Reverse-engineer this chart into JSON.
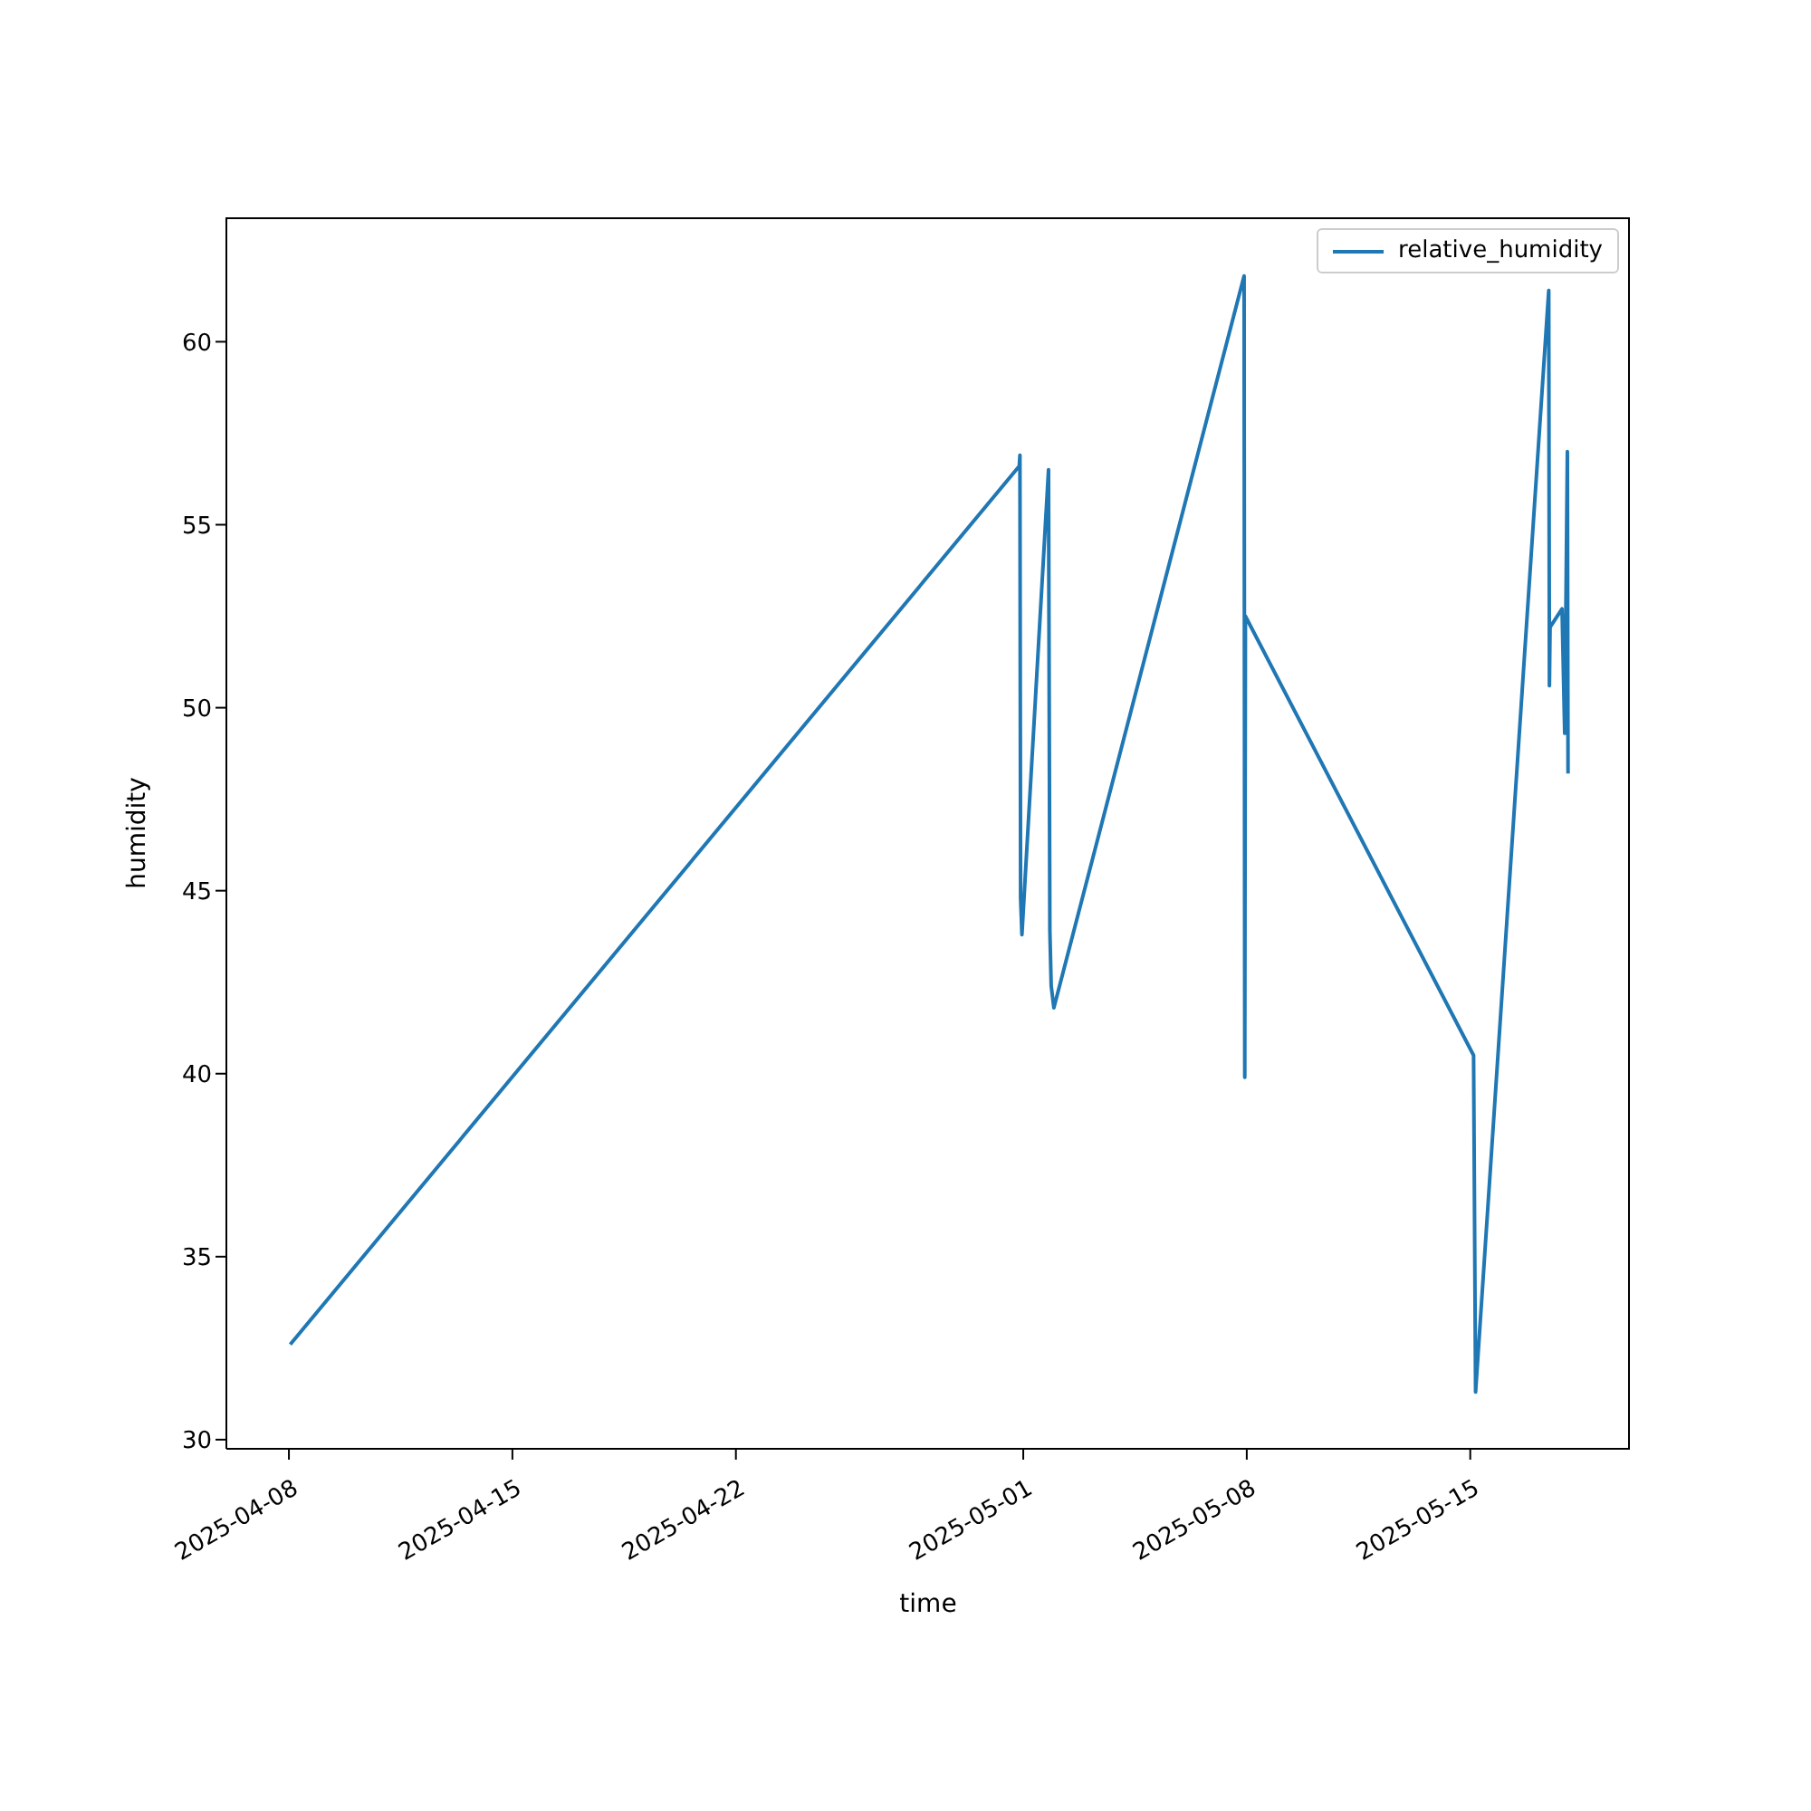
{
  "chart_data": {
    "type": "line",
    "xlabel": "time",
    "ylabel": "humidity",
    "x": [
      "2025-04-08T01:00",
      "2025-04-30T21:00",
      "2025-04-30T21:30",
      "2025-04-30T22:00",
      "2025-04-30T23:00",
      "2025-05-01T19:00",
      "2025-05-01T20:00",
      "2025-05-01T21:00",
      "2025-05-01T23:00",
      "2025-05-07T22:00",
      "2025-05-07T22:30",
      "2025-05-07T23:00",
      "2025-05-15T02:30",
      "2025-05-15T04:00",
      "2025-05-17T11:00",
      "2025-05-17T11:30",
      "2025-05-17T12:00",
      "2025-05-17T21:00",
      "2025-05-17T23:00",
      "2025-05-18T01:00",
      "2025-05-18T01:30"
    ],
    "series": [
      {
        "name": "relative_humidity",
        "color": "#1f77b4",
        "values": [
          32.6,
          56.6,
          56.9,
          44.8,
          43.8,
          56.5,
          43.9,
          42.4,
          41.8,
          61.8,
          39.9,
          52.5,
          40.5,
          31.3,
          61.4,
          50.6,
          52.2,
          52.7,
          49.3,
          57.0,
          48.2
        ]
      }
    ],
    "xlim": [
      "2025-04-06T01:00",
      "2025-05-20T00:00"
    ],
    "xticks": [
      "2025-04-08",
      "2025-04-15",
      "2025-04-22",
      "2025-05-01",
      "2025-05-08",
      "2025-05-15"
    ],
    "ylim": [
      29.75,
      63.4
    ],
    "yticks": [
      30,
      35,
      40,
      45,
      50,
      55,
      60
    ],
    "grid": false,
    "legend": "top right",
    "marker": "none",
    "line_style": "solid"
  }
}
